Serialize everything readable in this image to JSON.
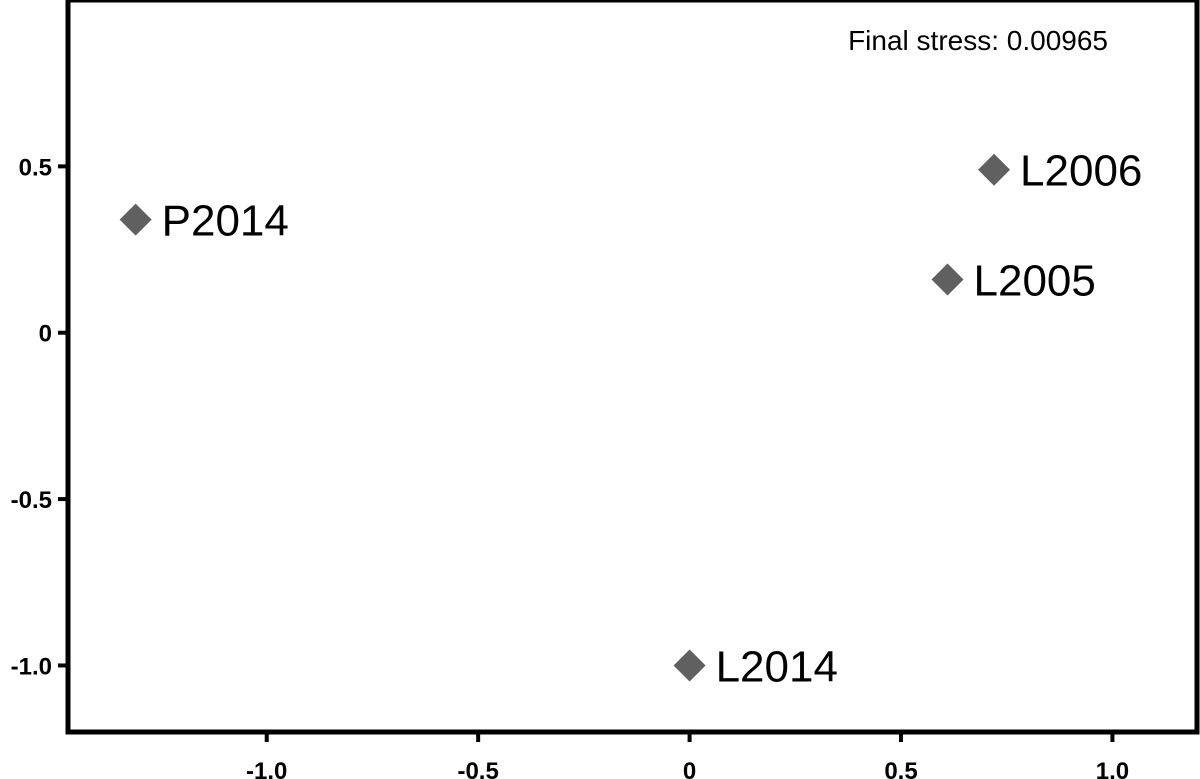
{
  "chart_data": {
    "type": "scatter",
    "title": "",
    "xlabel": "",
    "ylabel": "",
    "xlim": [
      -1.47,
      1.2
    ],
    "ylim": [
      -1.2,
      1.0
    ],
    "x_ticks": [
      -1.0,
      -0.5,
      0,
      0.5,
      1.0
    ],
    "x_tick_labels": [
      "-1.0",
      "-0.5",
      "0",
      "0.5",
      "1.0"
    ],
    "y_ticks": [
      0.5,
      0,
      -0.5,
      -1.0
    ],
    "y_tick_labels": [
      "0.5",
      "0",
      "-0.5",
      "-1.0"
    ],
    "grid": false,
    "marker": "diamond",
    "marker_color": "#606060",
    "annotation": "Final stress: 0.00965",
    "points": [
      {
        "label": "P2014",
        "x": -1.31,
        "y": 0.34
      },
      {
        "label": "L2006",
        "x": 0.72,
        "y": 0.49
      },
      {
        "label": "L2005",
        "x": 0.61,
        "y": 0.16
      },
      {
        "label": "L2014",
        "x": 0.0,
        "y": -1.0
      }
    ]
  }
}
